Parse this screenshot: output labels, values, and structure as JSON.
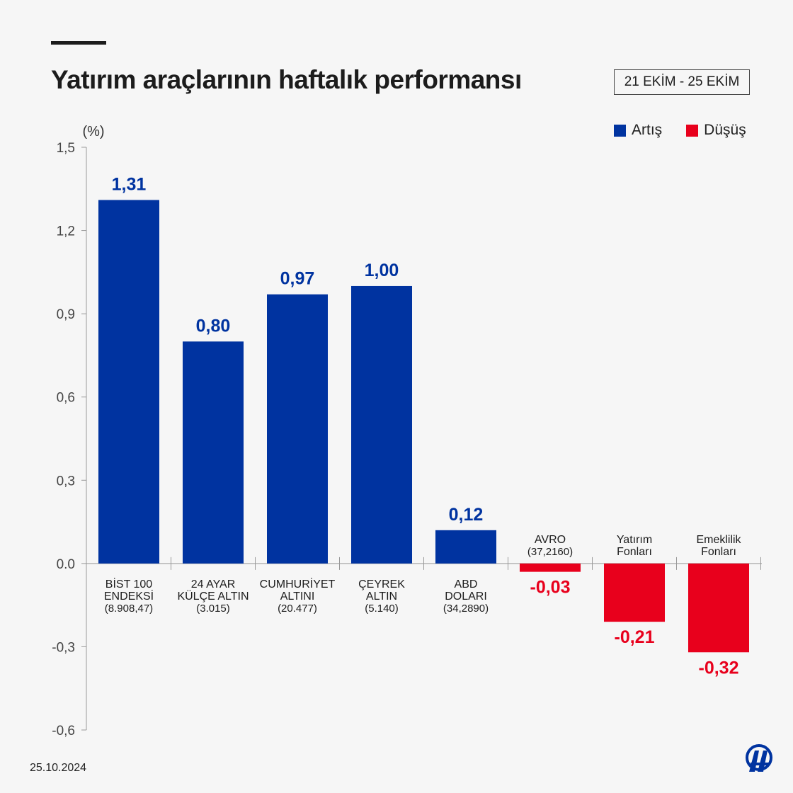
{
  "header": {
    "title": "Yatırım araçlarının haftalık performansı",
    "date_range": "21 EKİM - 25 EKİM"
  },
  "legend": {
    "items": [
      {
        "label": "Artış",
        "color": "#0033a0"
      },
      {
        "label": "Düşüş",
        "color": "#e8001c"
      }
    ]
  },
  "footer": {
    "date": "25.10.2024",
    "logo_icon": "aa-logo-icon"
  },
  "chart_data": {
    "type": "bar",
    "title": "Yatırım araçlarının haftalık performansı",
    "ylabel": "(%)",
    "xlabel": "",
    "ylim": [
      -0.6,
      1.5
    ],
    "yticks": [
      "1,5",
      "1,2",
      "0,9",
      "0,6",
      "0,3",
      "0.0",
      "-0,3",
      "-0,6"
    ],
    "ytick_values": [
      1.5,
      1.2,
      0.9,
      0.6,
      0.3,
      0.0,
      -0.3,
      -0.6
    ],
    "colors": {
      "positive": "#0033a0",
      "negative": "#e8001c"
    },
    "categories": [
      {
        "lines": [
          "BİST 100",
          "ENDEKSİ"
        ],
        "sub": "(8.908,47)"
      },
      {
        "lines": [
          "24 AYAR",
          "KÜLÇE ALTIN"
        ],
        "sub": "(3.015)"
      },
      {
        "lines": [
          "CUMHURİYET",
          "ALTINI"
        ],
        "sub": "(20.477)"
      },
      {
        "lines": [
          "ÇEYREK",
          "ALTIN"
        ],
        "sub": "(5.140)"
      },
      {
        "lines": [
          "ABD",
          "DOLARI"
        ],
        "sub": "(34,2890)"
      },
      {
        "lines": [
          "AVRO"
        ],
        "sub": "(37,2160)"
      },
      {
        "lines": [
          "Yatırım",
          "Fonları"
        ],
        "sub": ""
      },
      {
        "lines": [
          "Emeklilik",
          "Fonları"
        ],
        "sub": ""
      }
    ],
    "values": [
      1.31,
      0.8,
      0.97,
      1.0,
      0.12,
      -0.03,
      -0.21,
      -0.32
    ],
    "value_labels": [
      "1,31",
      "0,80",
      "0,97",
      "1,00",
      "0,12",
      "-0,03",
      "-0,21",
      "-0,32"
    ]
  }
}
